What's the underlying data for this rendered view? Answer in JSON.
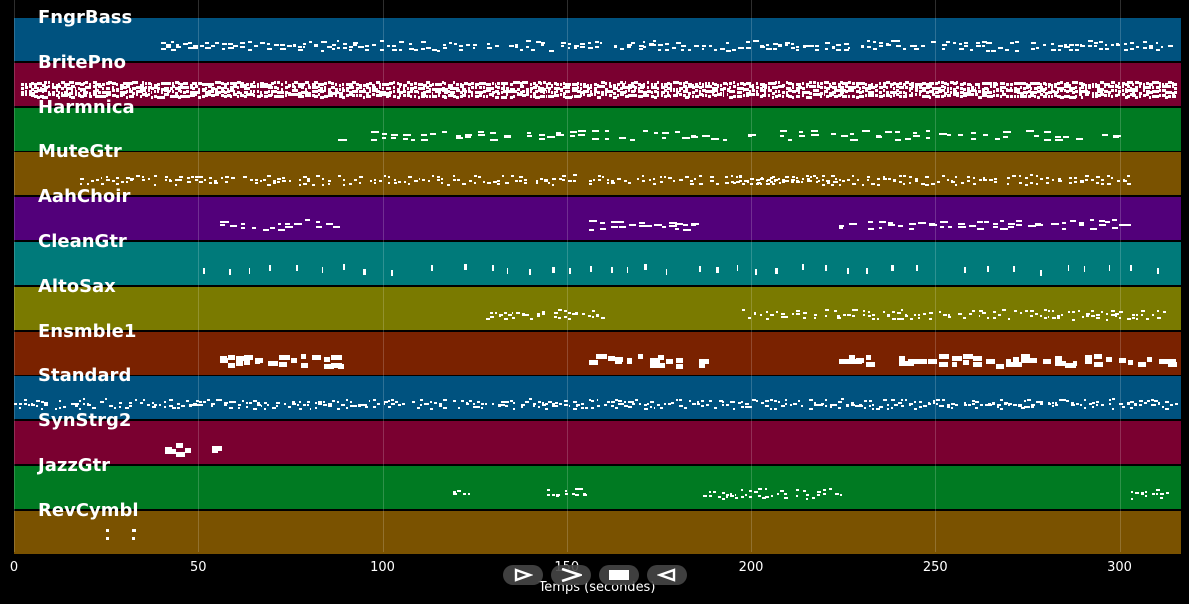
{
  "tracks": [
    {
      "name": "FngrBass",
      "color": "#00527f"
    },
    {
      "name": "BritePno",
      "color": "#7a0030"
    },
    {
      "name": "Harmnica",
      "color": "#007a22"
    },
    {
      "name": "MuteGtr",
      "color": "#7a5200"
    },
    {
      "name": "AahChoir",
      "color": "#52007a"
    },
    {
      "name": "CleanGtr",
      "color": "#007a7a"
    },
    {
      "name": "AltoSax",
      "color": "#7a7a00"
    },
    {
      "name": "Ensmble1",
      "color": "#7a2200"
    },
    {
      "name": "Standard",
      "color": "#00527f"
    },
    {
      "name": "SynStrg2",
      "color": "#7a0030"
    },
    {
      "name": "JazzGtr",
      "color": "#007a22"
    },
    {
      "name": "RevCymbl",
      "color": "#7a5200"
    }
  ],
  "xaxis": {
    "label": "Temps (secondes)",
    "ticks": [
      "0",
      "50",
      "100",
      "150",
      "200",
      "250",
      "300"
    ],
    "tick_values": [
      0,
      50,
      100,
      150,
      200,
      250,
      300
    ],
    "range": [
      0,
      317
    ]
  },
  "note_regions": [
    {
      "track": 0,
      "segments": [
        [
          40,
          315
        ]
      ],
      "density": "medium",
      "style": "sparse-dash"
    },
    {
      "track": 1,
      "segments": [
        [
          2,
          315
        ]
      ],
      "density": "dense",
      "style": "block"
    },
    {
      "track": 2,
      "segments": [
        [
          88,
          300
        ]
      ],
      "density": "sparse",
      "style": "dash"
    },
    {
      "track": 3,
      "segments": [
        [
          18,
          126
        ],
        [
          126,
          152
        ],
        [
          156,
          225
        ],
        [
          195,
          303
        ]
      ],
      "density": "medium",
      "style": "small"
    },
    {
      "track": 4,
      "segments": [
        [
          56,
          88
        ],
        [
          156,
          186
        ],
        [
          224,
          302
        ]
      ],
      "density": "medium",
      "style": "dash"
    },
    {
      "track": 5,
      "segments": [
        [
          40,
          315
        ]
      ],
      "density": "sparse",
      "style": "tick"
    },
    {
      "track": 6,
      "segments": [
        [
          128,
          160
        ],
        [
          196,
          312
        ]
      ],
      "density": "medium",
      "style": "small"
    },
    {
      "track": 7,
      "segments": [
        [
          56,
          88
        ],
        [
          156,
          187
        ],
        [
          224,
          315
        ]
      ],
      "density": "medium",
      "style": "thick"
    },
    {
      "track": 8,
      "segments": [
        [
          0,
          315
        ]
      ],
      "density": "dense",
      "style": "small"
    },
    {
      "track": 9,
      "segments": [
        [
          41,
          55
        ]
      ],
      "density": "sparse",
      "style": "thick"
    },
    {
      "track": 10,
      "segments": [
        [
          119,
          124
        ],
        [
          143,
          156
        ],
        [
          187,
          225
        ],
        [
          303,
          313
        ]
      ],
      "density": "medium",
      "style": "small"
    },
    {
      "track": 11,
      "segments": [
        [
          25,
          26
        ],
        [
          32,
          33
        ]
      ],
      "density": "sparse",
      "style": "dot"
    }
  ],
  "controls": [
    {
      "name": "play-icon"
    },
    {
      "name": "forward-icon"
    },
    {
      "name": "stop-icon"
    },
    {
      "name": "rewind-icon"
    }
  ]
}
